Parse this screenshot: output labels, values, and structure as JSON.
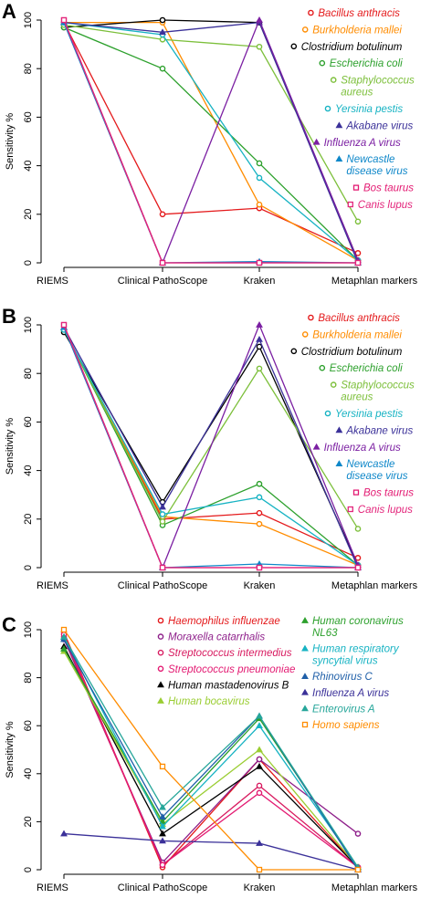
{
  "chart_data": [
    {
      "panel": "A",
      "type": "line",
      "ylabel": "Sensitivity %",
      "categories": [
        "RIEMS",
        "Clinical PathoScope",
        "Kraken",
        "Metaphlan markers"
      ],
      "yticks": [
        0,
        20,
        40,
        60,
        80,
        100
      ],
      "ylim": [
        0,
        100
      ],
      "series": [
        {
          "name": "Bacillus anthracis",
          "color": "#e41a1c",
          "marker": "circle",
          "values": [
            99,
            20,
            22.5,
            4
          ]
        },
        {
          "name": "Burkholderia mallei",
          "color": "#ff8c00",
          "marker": "circle",
          "values": [
            99,
            99,
            24,
            1
          ]
        },
        {
          "name": "Clostridium botulinum",
          "color": "#000000",
          "marker": "circle",
          "values": [
            97,
            100,
            99,
            1
          ]
        },
        {
          "name": "Escherichia coli",
          "color": "#2ca02c",
          "marker": "circle",
          "values": [
            97,
            80,
            41,
            1
          ]
        },
        {
          "name": "Staphylococcus aureus",
          "color": "#7cbf3a",
          "marker": "circle",
          "values": [
            98,
            92,
            89,
            17
          ]
        },
        {
          "name": "Yersinia pestis",
          "color": "#17b3c3",
          "marker": "circle",
          "values": [
            99,
            94,
            35,
            1
          ]
        },
        {
          "name": "Akabane virus",
          "color": "#3b3199",
          "marker": "triangle",
          "values": [
            99,
            95,
            99,
            0
          ]
        },
        {
          "name": "Influenza A virus",
          "color": "#7b1fa2",
          "marker": "triangle",
          "values": [
            99,
            0,
            100,
            1
          ]
        },
        {
          "name": "Newcastle disease virus",
          "color": "#0e87c9",
          "marker": "triangle",
          "values": [
            99,
            0,
            0.5,
            0
          ]
        },
        {
          "name": "Bos taurus",
          "color": "#e31a72",
          "marker": "square",
          "values": [
            100,
            0,
            0,
            0
          ]
        },
        {
          "name": "Canis lupus",
          "color": "#e3257b",
          "marker": "square",
          "values": [
            100,
            0,
            0,
            0
          ]
        }
      ]
    },
    {
      "panel": "B",
      "type": "line",
      "ylabel": "Sensitivity %",
      "categories": [
        "RIEMS",
        "Clinical PathoScope",
        "Kraken",
        "Metaphlan markers"
      ],
      "yticks": [
        0,
        20,
        40,
        60,
        80,
        100
      ],
      "ylim": [
        0,
        100
      ],
      "series": [
        {
          "name": "Bacillus anthracis",
          "color": "#e41a1c",
          "marker": "circle",
          "values": [
            98,
            20,
            22.5,
            4
          ]
        },
        {
          "name": "Burkholderia mallei",
          "color": "#ff8c00",
          "marker": "circle",
          "values": [
            98,
            21,
            18,
            1
          ]
        },
        {
          "name": "Clostridium botulinum",
          "color": "#000000",
          "marker": "circle",
          "values": [
            97,
            27,
            91,
            1
          ]
        },
        {
          "name": "Escherichia coli",
          "color": "#2ca02c",
          "marker": "circle",
          "values": [
            98,
            17.5,
            34.5,
            1
          ]
        },
        {
          "name": "Staphylococcus aureus",
          "color": "#7cbf3a",
          "marker": "circle",
          "values": [
            98,
            19,
            82,
            16
          ]
        },
        {
          "name": "Yersinia pestis",
          "color": "#17b3c3",
          "marker": "circle",
          "values": [
            98,
            22,
            29,
            1
          ]
        },
        {
          "name": "Akabane virus",
          "color": "#3b3199",
          "marker": "triangle",
          "values": [
            99,
            25,
            94,
            0
          ]
        },
        {
          "name": "Influenza A virus",
          "color": "#7b1fa2",
          "marker": "triangle",
          "values": [
            99,
            0,
            100,
            1
          ]
        },
        {
          "name": "Newcastle disease virus",
          "color": "#0e87c9",
          "marker": "triangle",
          "values": [
            99,
            0,
            1.5,
            0
          ]
        },
        {
          "name": "Bos taurus",
          "color": "#e31a72",
          "marker": "square",
          "values": [
            100,
            0,
            0,
            0
          ]
        },
        {
          "name": "Canis lupus",
          "color": "#e3257b",
          "marker": "square",
          "values": [
            100,
            0,
            0,
            0
          ]
        }
      ]
    },
    {
      "panel": "C",
      "type": "line",
      "ylabel": "Sensitivity %",
      "categories": [
        "RIEMS",
        "Clinical PathoScope",
        "Kraken",
        "Metaphlan markers"
      ],
      "yticks": [
        0,
        20,
        40,
        60,
        80,
        100
      ],
      "ylim": [
        0,
        100
      ],
      "series": [
        {
          "name": "Haemophilus influenzae",
          "color": "#e41a1c",
          "marker": "circle",
          "values": [
            99,
            1,
            46,
            1
          ]
        },
        {
          "name": "Moraxella catarrhalis",
          "color": "#8e1f8a",
          "marker": "circle",
          "values": [
            96,
            3,
            46,
            15
          ]
        },
        {
          "name": "Streptococcus intermedius",
          "color": "#d81b60",
          "marker": "circle",
          "values": [
            97,
            2,
            35,
            1
          ]
        },
        {
          "name": "Streptococcus pneumoniae",
          "color": "#e31a72",
          "marker": "circle",
          "values": [
            98,
            2,
            32,
            1
          ]
        },
        {
          "name": "Human mastadenovirus B",
          "color": "#000000",
          "marker": "triangle",
          "values": [
            93,
            15,
            43,
            1
          ]
        },
        {
          "name": "Human bocavirus",
          "color": "#9acd32",
          "marker": "triangle",
          "values": [
            91,
            19,
            50,
            1
          ]
        },
        {
          "name": "Human coronavirus NL63",
          "color": "#2ca02c",
          "marker": "triangle",
          "values": [
            92,
            20,
            63,
            1
          ]
        },
        {
          "name": "Human respiratory syncytial virus",
          "color": "#17b3c3",
          "marker": "triangle",
          "values": [
            97,
            18,
            60,
            1
          ]
        },
        {
          "name": "Rhinovirus C",
          "color": "#1f5fa8",
          "marker": "triangle",
          "values": [
            96,
            22,
            64,
            0
          ]
        },
        {
          "name": "Influenza A virus",
          "color": "#3b3199",
          "marker": "triangle",
          "values": [
            15,
            12,
            11,
            0
          ]
        },
        {
          "name": "Enterovirus A",
          "color": "#26a69a",
          "marker": "triangle",
          "values": [
            97,
            26,
            64,
            1
          ]
        },
        {
          "name": "Homo sapiens",
          "color": "#ff8c00",
          "marker": "square",
          "values": [
            100,
            43,
            0,
            0
          ]
        }
      ]
    }
  ]
}
